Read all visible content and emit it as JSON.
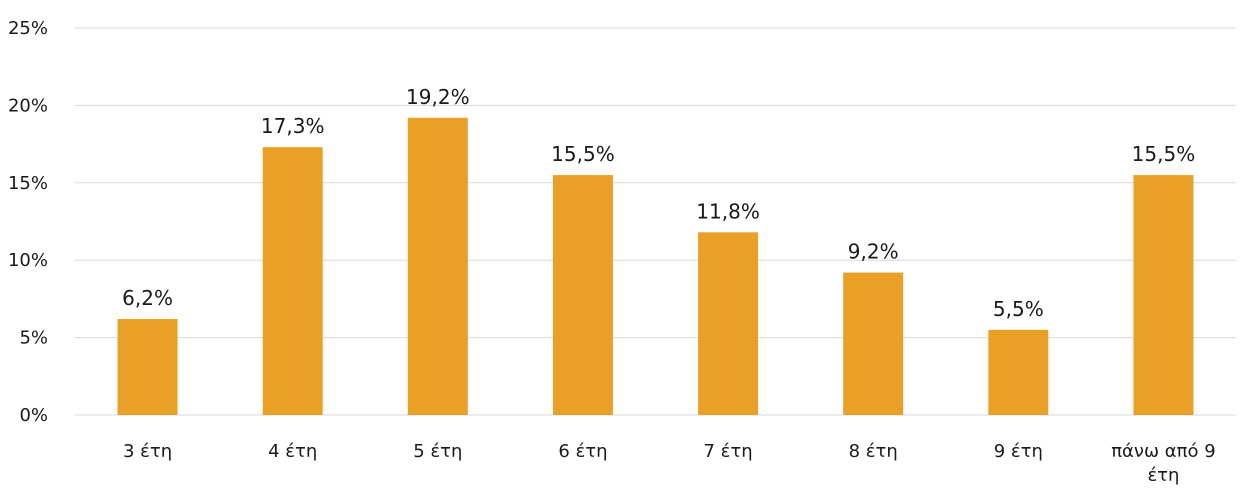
{
  "chart_data": {
    "type": "bar",
    "categories": [
      "3 έτη",
      "4 έτη",
      "5 έτη",
      "6 έτη",
      "7 έτη",
      "8 έτη",
      "9 έτη",
      "πάνω από 9 έτη"
    ],
    "values": [
      6.2,
      17.3,
      19.2,
      15.5,
      11.8,
      9.2,
      5.5,
      15.5
    ],
    "data_labels": [
      "6,2%",
      "17,3%",
      "19,2%",
      "15,5%",
      "11,8%",
      "9,2%",
      "5,5%",
      "15,5%"
    ],
    "y_ticks": [
      "0%",
      "5%",
      "10%",
      "15%",
      "20%",
      "25%"
    ],
    "ylim": [
      0,
      25
    ],
    "title": "",
    "xlabel": "",
    "ylabel": "",
    "grid": "horizontal",
    "legend": "none",
    "bar_color": "#E8A027"
  }
}
